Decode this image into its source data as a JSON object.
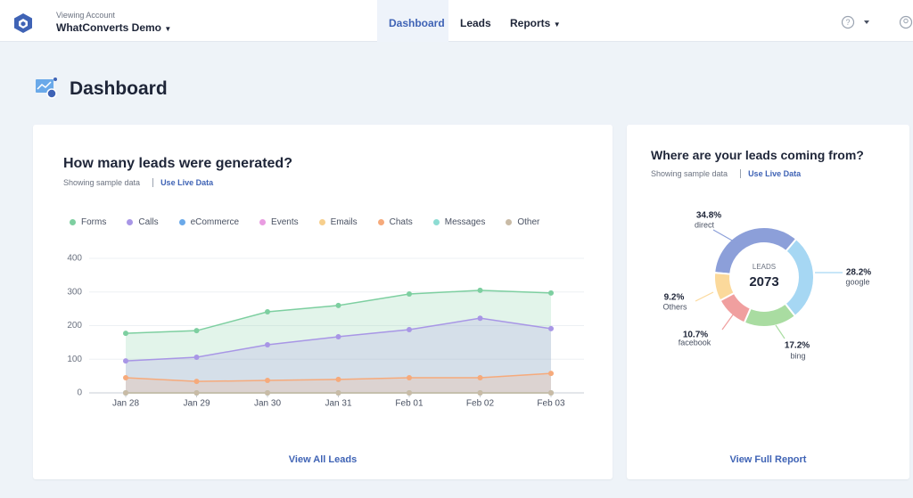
{
  "nav": {
    "account_label": "Viewing Account",
    "account": "WhatConverts Demo",
    "links": [
      "Dashboard",
      "Leads",
      "Reports"
    ]
  },
  "header": {
    "title": "Dashboard"
  },
  "chart_data": [
    {
      "type": "line",
      "title": "How many leads were generated?",
      "subtitle": "Showing sample data",
      "link": "Use Live Data",
      "footer": "View All Leads",
      "categories": [
        "Jan 28",
        "Jan 29",
        "Jan 30",
        "Jan 31",
        "Feb 01",
        "Feb 02",
        "Feb 03"
      ],
      "series": [
        {
          "name": "Forms",
          "color": "#7dcfa0",
          "values": [
            177,
            185,
            241,
            260,
            294,
            305,
            297
          ]
        },
        {
          "name": "Calls",
          "color": "#a896e6",
          "values": [
            95,
            106,
            143,
            167,
            188,
            222,
            191
          ]
        },
        {
          "name": "eCommerce",
          "color": "#6aa9e9",
          "values": [
            0,
            0,
            0,
            0,
            0,
            0,
            0
          ]
        },
        {
          "name": "Events",
          "color": "#e99ce1",
          "values": [
            0,
            0,
            0,
            0,
            0,
            0,
            0
          ]
        },
        {
          "name": "Emails",
          "color": "#f7cf8c",
          "values": [
            0,
            0,
            0,
            0,
            0,
            0,
            0
          ]
        },
        {
          "name": "Chats",
          "color": "#f6aa7b",
          "values": [
            45,
            34,
            37,
            40,
            45,
            45,
            58
          ]
        },
        {
          "name": "Messages",
          "color": "#8ddcd3",
          "values": [
            0,
            0,
            0,
            0,
            0,
            0,
            0
          ]
        },
        {
          "name": "Other",
          "color": "#c9bba6",
          "values": [
            0,
            0,
            0,
            0,
            0,
            0,
            0
          ]
        }
      ],
      "ylim": [
        0,
        400
      ],
      "yticks": [
        0,
        100,
        200,
        300,
        400
      ],
      "grid": true
    },
    {
      "type": "donut",
      "title": "Where are your leads coming from?",
      "subtitle": "Showing sample data",
      "link": "Use Live Data",
      "footer": "View Full Report",
      "center_label": "LEADS",
      "center_value": 2073,
      "categories": [
        "direct",
        "google",
        "bing",
        "facebook",
        "Others"
      ],
      "values": [
        34.8,
        28.2,
        17.2,
        10.7,
        9.2
      ],
      "value_labels": [
        "34.8%",
        "28.2%",
        "17.2%",
        "10.7%",
        "9.2%"
      ],
      "colors": [
        "#8c9fd9",
        "#a6d7f3",
        "#a9dca1",
        "#f09f9f",
        "#fbd99b"
      ]
    }
  ]
}
